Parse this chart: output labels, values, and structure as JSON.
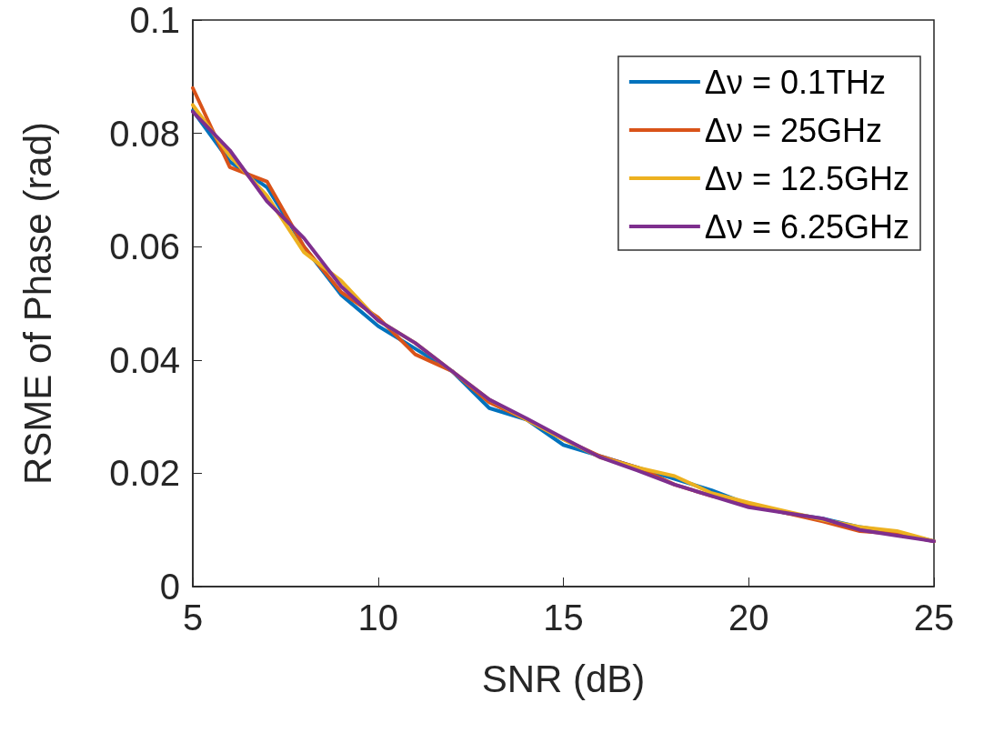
{
  "chart_data": {
    "type": "line",
    "xlabel": "SNR (dB)",
    "ylabel": "RSME of Phase (rad)",
    "x": [
      5,
      6,
      7,
      8,
      9,
      10,
      11,
      12,
      13,
      14,
      15,
      16,
      17,
      18,
      19,
      20,
      21,
      22,
      23,
      24,
      25
    ],
    "xlim": [
      5,
      25
    ],
    "xticks": [
      5,
      10,
      15,
      20,
      25
    ],
    "ylim": [
      0,
      0.1
    ],
    "yticks": [
      0,
      0.02,
      0.04,
      0.06,
      0.08,
      0.1
    ],
    "grid": false,
    "legend": "top right",
    "marker": "none",
    "line_style": "solid",
    "series": [
      {
        "name": "Δν = 0.1THz",
        "color": "#0072bd",
        "values": [
          0.084,
          0.075,
          0.0705,
          0.06,
          0.0515,
          0.046,
          0.042,
          0.038,
          0.0315,
          0.0295,
          0.025,
          0.023,
          0.021,
          0.019,
          0.017,
          0.0145,
          0.013,
          0.012,
          0.0105,
          0.0095,
          0.008
        ]
      },
      {
        "name": "Δν = 25GHz",
        "color": "#d95319",
        "values": [
          0.088,
          0.074,
          0.0715,
          0.06,
          0.052,
          0.0475,
          0.041,
          0.038,
          0.0325,
          0.0295,
          0.026,
          0.023,
          0.021,
          0.018,
          0.016,
          0.0145,
          0.013,
          0.0115,
          0.0098,
          0.0093,
          0.008
        ]
      },
      {
        "name": "Δν = 12.5GHz",
        "color": "#edb120",
        "values": [
          0.085,
          0.076,
          0.069,
          0.059,
          0.054,
          0.047,
          0.043,
          0.038,
          0.033,
          0.0295,
          0.026,
          0.0228,
          0.021,
          0.0195,
          0.0165,
          0.0148,
          0.0133,
          0.0118,
          0.0105,
          0.0098,
          0.008
        ]
      },
      {
        "name": "Δν = 6.25GHz",
        "color": "#7e2f8e",
        "values": [
          0.0838,
          0.077,
          0.068,
          0.0615,
          0.053,
          0.047,
          0.043,
          0.038,
          0.033,
          0.0297,
          0.0262,
          0.0228,
          0.0205,
          0.018,
          0.016,
          0.014,
          0.013,
          0.012,
          0.01,
          0.009,
          0.008
        ]
      }
    ]
  }
}
